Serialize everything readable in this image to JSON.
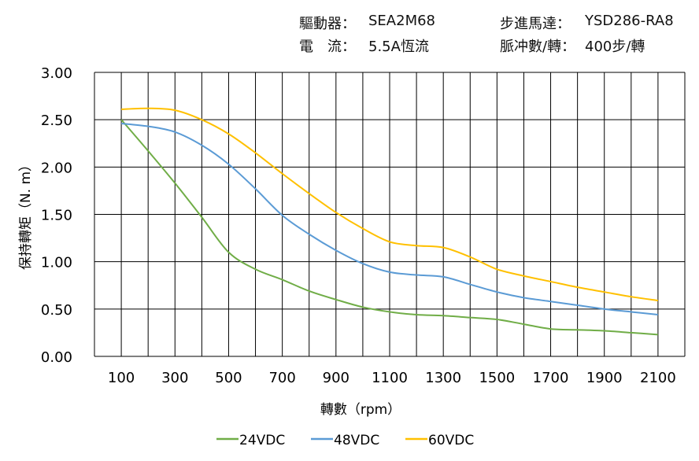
{
  "header": {
    "driver_label": "驅動器：",
    "driver_value": "SEA2M68",
    "motor_label": "步進馬達：",
    "motor_value": "YSD286-RA8",
    "current_label": "電　流：",
    "current_value": "5.5A恆流",
    "pulse_label": "脈冲數/轉：",
    "pulse_value": "400步/轉"
  },
  "chart_data": {
    "type": "line",
    "title": "",
    "xlabel": "轉數（rpm）",
    "ylabel": "保持轉矩（N. m）",
    "xlim": [
      0,
      2200
    ],
    "ylim": [
      0,
      3
    ],
    "grid": true,
    "legend_position": "bottom",
    "x_ticks": [
      "100",
      "300",
      "500",
      "700",
      "900",
      "1100",
      "1300",
      "1500",
      "1700",
      "1900",
      "2100"
    ],
    "y_ticks": [
      "0.00",
      "0.50",
      "1.00",
      "1.50",
      "2.00",
      "2.50",
      "3.00"
    ],
    "x": [
      100,
      200,
      300,
      400,
      500,
      600,
      700,
      800,
      900,
      1000,
      1100,
      1200,
      1300,
      1400,
      1500,
      1600,
      1700,
      1800,
      1900,
      2000,
      2100
    ],
    "series": [
      {
        "name": "24VDC",
        "color": "#70ad47",
        "values": [
          2.5,
          2.17,
          1.83,
          1.47,
          1.1,
          0.92,
          0.81,
          0.69,
          0.6,
          0.52,
          0.47,
          0.44,
          0.43,
          0.41,
          0.39,
          0.34,
          0.29,
          0.28,
          0.27,
          0.25,
          0.23
        ]
      },
      {
        "name": "48VDC",
        "color": "#5b9bd5",
        "values": [
          2.46,
          2.43,
          2.37,
          2.23,
          2.03,
          1.77,
          1.49,
          1.29,
          1.12,
          0.98,
          0.89,
          0.86,
          0.84,
          0.76,
          0.68,
          0.62,
          0.58,
          0.54,
          0.5,
          0.47,
          0.44
        ]
      },
      {
        "name": "60VDC",
        "color": "#ffc000",
        "values": [
          2.61,
          2.62,
          2.6,
          2.5,
          2.35,
          2.15,
          1.93,
          1.72,
          1.52,
          1.35,
          1.21,
          1.17,
          1.15,
          1.05,
          0.92,
          0.85,
          0.79,
          0.73,
          0.68,
          0.63,
          0.59
        ]
      }
    ]
  }
}
